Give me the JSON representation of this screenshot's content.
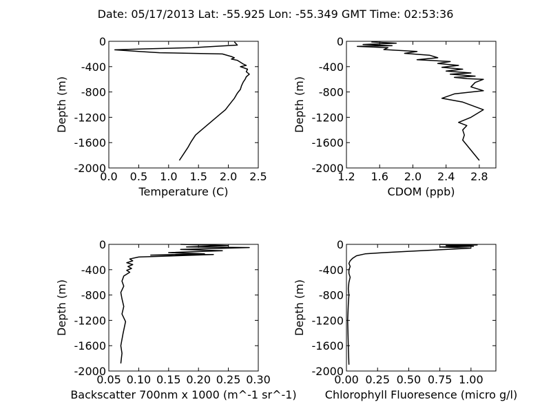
{
  "figure": {
    "title": "Date: 05/17/2013  Lat:  -55.925 Lon:  -55.349  GMT Time: 02:53:36"
  },
  "chart_data": [
    {
      "type": "line",
      "xlabel": "Temperature (C)",
      "ylabel": "Depth (m)",
      "xlim": [
        0.0,
        2.5
      ],
      "ylim": [
        -2000,
        0
      ],
      "xticks": [
        "0.0",
        "0.5",
        "1.0",
        "1.5",
        "2.0",
        "2.5"
      ],
      "yticks": [
        "0",
        "-400",
        "-800",
        "-1200",
        "-1600",
        "-2000"
      ],
      "series": [
        {
          "x": [
            2.1,
            2.15,
            1.4,
            0.6,
            0.1,
            0.5,
            0.85,
            1.9,
            2.05,
            2.1,
            2.05,
            2.15,
            2.2,
            2.25,
            2.3,
            2.2,
            2.32,
            2.3,
            2.35,
            2.3,
            2.28,
            2.25,
            2.22,
            2.2,
            2.15,
            2.1,
            2.05,
            2.0,
            1.95,
            1.85,
            1.75,
            1.65,
            1.55,
            1.45,
            1.38,
            1.32,
            1.25,
            1.18
          ],
          "y": [
            -10,
            -60,
            -100,
            -120,
            -135,
            -160,
            -180,
            -200,
            -240,
            -260,
            -280,
            -300,
            -330,
            -360,
            -380,
            -400,
            -440,
            -480,
            -520,
            -560,
            -600,
            -640,
            -700,
            -760,
            -820,
            -900,
            -960,
            -1020,
            -1080,
            -1160,
            -1240,
            -1320,
            -1400,
            -1480,
            -1580,
            -1680,
            -1780,
            -1880
          ]
        }
      ]
    },
    {
      "type": "line",
      "xlabel": "CDOM (ppb)",
      "ylabel": "Depth (m)",
      "xlim": [
        1.2,
        3.0
      ],
      "ylim": [
        -2000,
        0
      ],
      "xticks": [
        "1.2",
        "1.6",
        "2.0",
        "2.4",
        "2.8"
      ],
      "yticks": [
        "0",
        "-400",
        "-800",
        "-1200",
        "-1600",
        "-2000"
      ],
      "series": [
        {
          "x": [
            1.5,
            1.8,
            1.4,
            1.75,
            1.33,
            1.7,
            1.65,
            2.05,
            1.9,
            2.2,
            2.3,
            2.05,
            2.45,
            2.3,
            2.55,
            2.35,
            2.6,
            2.4,
            2.7,
            2.45,
            2.75,
            2.5,
            2.65,
            2.85,
            2.75,
            2.7,
            2.85,
            2.5,
            2.35,
            2.6,
            2.85,
            2.7,
            2.55,
            2.65,
            2.6,
            2.62,
            2.6,
            2.8
          ],
          "y": [
            -10,
            -30,
            -50,
            -70,
            -80,
            -100,
            -130,
            -160,
            -190,
            -220,
            -260,
            -290,
            -320,
            -350,
            -380,
            -410,
            -440,
            -470,
            -500,
            -520,
            -550,
            -570,
            -590,
            -600,
            -650,
            -720,
            -780,
            -830,
            -900,
            -960,
            -1080,
            -1200,
            -1280,
            -1330,
            -1400,
            -1480,
            -1560,
            -1880
          ]
        }
      ]
    },
    {
      "type": "line",
      "xlabel": "Backscatter 700nm x 1000 (m^-1 sr^-1)",
      "ylabel": "Depth (m)",
      "xlim": [
        0.05,
        0.3
      ],
      "ylim": [
        -2000,
        0
      ],
      "xticks": [
        "0.05",
        "0.10",
        "0.15",
        "0.20",
        "0.25",
        "0.30"
      ],
      "yticks": [
        "0",
        "-400",
        "-800",
        "-1200",
        "-1600",
        "-2000"
      ],
      "series": [
        {
          "x": [
            0.17,
            0.25,
            0.18,
            0.285,
            0.17,
            0.24,
            0.15,
            0.21,
            0.12,
            0.225,
            0.1,
            0.085,
            0.09,
            0.08,
            0.09,
            0.082,
            0.088,
            0.08,
            0.085,
            0.075,
            0.072,
            0.075,
            0.07,
            0.072,
            0.075,
            0.072,
            0.078,
            0.074,
            0.07,
            0.072,
            0.07
          ],
          "y": [
            0,
            -20,
            -40,
            -50,
            -80,
            -100,
            -130,
            -150,
            -170,
            -160,
            -200,
            -230,
            -260,
            -290,
            -320,
            -350,
            -380,
            -410,
            -440,
            -500,
            -580,
            -660,
            -760,
            -860,
            -980,
            -1100,
            -1220,
            -1400,
            -1600,
            -1720,
            -1880
          ]
        }
      ]
    },
    {
      "type": "line",
      "xlabel": "Chlorophyll Fluoresence (micro g/l)",
      "ylabel": "Depth (m)",
      "xlim": [
        0.0,
        1.2
      ],
      "ylim": [
        -2000,
        0
      ],
      "xticks": [
        "0.00",
        "0.25",
        "0.50",
        "0.75",
        "1.00"
      ],
      "yticks": [
        "0",
        "-400",
        "-800",
        "-1200",
        "-1600",
        "-2000"
      ],
      "series": [
        {
          "x": [
            0.75,
            1.05,
            0.8,
            1.02,
            0.75,
            1.0,
            0.8,
            0.5,
            0.3,
            0.15,
            0.08,
            0.05,
            0.03,
            0.02,
            0.03,
            0.02,
            0.02,
            0.03,
            0.02,
            0.015,
            0.02,
            0.015,
            0.01,
            0.015,
            0.02
          ],
          "y": [
            0,
            -10,
            -20,
            -30,
            -40,
            -60,
            -80,
            -110,
            -130,
            -150,
            -180,
            -220,
            -260,
            -300,
            -350,
            -400,
            -460,
            -520,
            -600,
            -700,
            -800,
            -950,
            -1200,
            -1600,
            -1900
          ]
        }
      ]
    }
  ]
}
